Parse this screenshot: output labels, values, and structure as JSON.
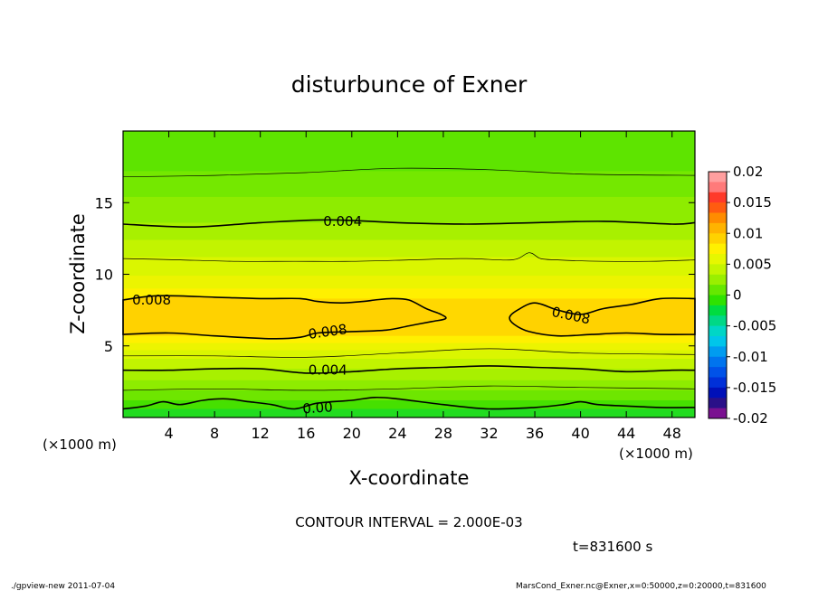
{
  "chart_data": {
    "type": "contour",
    "title": "disturbunce of Exner",
    "xlabel": "X-coordinate",
    "ylabel": "Z-coordinate",
    "x_unit": "(×1000 m)",
    "x_unit_bottom": "(×1000 m)",
    "xlim": [
      0,
      50
    ],
    "ylim": [
      0,
      20
    ],
    "x_ticks": [
      4,
      8,
      12,
      16,
      20,
      24,
      28,
      32,
      36,
      40,
      44,
      48
    ],
    "y_ticks": [
      5,
      10,
      15
    ],
    "colorbar": {
      "range": [
        -0.02,
        0.02
      ],
      "tick_labels": [
        "0.02",
        "0.015",
        "0.01",
        "0.005",
        "0",
        "-0.005",
        "-0.01",
        "-0.015",
        "-0.02"
      ],
      "levels_top_to_bottom": [
        "#ff9f9f",
        "#ff7a7a",
        "#ff3a2a",
        "#ff5c10",
        "#ff8c00",
        "#ffb300",
        "#ffd200",
        "#fff000",
        "#e6f700",
        "#c4f500",
        "#9aef00",
        "#66e800",
        "#2fe200",
        "#00dc40",
        "#00d886",
        "#00d6c6",
        "#00c6ea",
        "#009cf0",
        "#0074ee",
        "#0052e8",
        "#0030d8",
        "#0010b8",
        "#2a1088",
        "#7a1090"
      ]
    },
    "bands": [
      {
        "z_top": 20.0,
        "color": "#5ee400"
      },
      {
        "z_top": 17.2,
        "color": "#74e800"
      },
      {
        "z_top": 15.4,
        "color": "#8eec00"
      },
      {
        "z_top": 13.6,
        "color": "#a8f000"
      },
      {
        "z_top": 12.4,
        "color": "#c2f400"
      },
      {
        "z_top": 11.2,
        "color": "#daf600"
      },
      {
        "z_top": 9.9,
        "color": "#ecf400"
      },
      {
        "z_top": 9.0,
        "color": "#fff000"
      },
      {
        "z_top": 8.3,
        "color": "#ffd800"
      },
      {
        "z_top": 5.7,
        "color": "#fff000"
      },
      {
        "z_top": 5.2,
        "color": "#ecf400"
      },
      {
        "z_top": 4.7,
        "color": "#daf600"
      },
      {
        "z_top": 4.1,
        "color": "#c2f400"
      },
      {
        "z_top": 3.4,
        "color": "#a8f000"
      },
      {
        "z_top": 2.6,
        "color": "#8eec00"
      },
      {
        "z_top": 1.9,
        "color": "#6ee600"
      },
      {
        "z_top": 1.2,
        "color": "#46e000"
      },
      {
        "z_top": 0.6,
        "color": "#22dc20"
      }
    ],
    "warm_lobes": [
      {
        "x": [
          0,
          3,
          8,
          12,
          15.5,
          17,
          19,
          21,
          22,
          23.5,
          25,
          26.5,
          27.8,
          28.2,
          27,
          25,
          23,
          20,
          17,
          15.5,
          13,
          8,
          4,
          0
        ],
        "z": [
          8.2,
          8.5,
          8.4,
          8.3,
          8.3,
          8.1,
          8.0,
          8.1,
          8.2,
          8.3,
          8.2,
          7.6,
          7.2,
          6.9,
          6.7,
          6.4,
          6.1,
          6.0,
          5.9,
          5.6,
          5.5,
          5.7,
          5.9,
          5.8
        ]
      },
      {
        "x": [
          50,
          47,
          44.5,
          42,
          40,
          38,
          36,
          34.5,
          33.8,
          34.2,
          35.5,
          38,
          41,
          44,
          47,
          50
        ],
        "z": [
          8.3,
          8.3,
          7.9,
          7.6,
          7.2,
          7.5,
          8.0,
          7.5,
          7.0,
          6.5,
          6.0,
          5.7,
          5.8,
          5.9,
          5.8,
          5.8
        ]
      }
    ],
    "contours": [
      {
        "level": "0.004",
        "width": 1.6,
        "x": [
          0,
          6,
          12,
          18,
          24,
          30,
          36,
          42,
          48,
          50
        ],
        "z": [
          13.5,
          13.3,
          13.6,
          13.8,
          13.6,
          13.5,
          13.6,
          13.7,
          13.5,
          13.6
        ]
      },
      {
        "level": "0.004",
        "width": 1.6,
        "x": [
          0,
          4,
          8,
          12,
          16,
          20,
          24,
          28,
          32,
          36,
          40,
          44,
          48,
          50
        ],
        "z": [
          3.3,
          3.3,
          3.4,
          3.4,
          3.1,
          3.2,
          3.4,
          3.5,
          3.6,
          3.5,
          3.4,
          3.2,
          3.3,
          3.3
        ]
      },
      {
        "level": "0.00",
        "width": 1.6,
        "x": [
          0,
          2,
          3.5,
          5,
          7,
          9,
          11,
          13,
          15,
          17,
          20,
          22,
          24,
          28,
          32,
          36,
          38.5,
          40,
          41.5,
          44,
          47,
          50
        ],
        "z": [
          0.6,
          0.8,
          1.1,
          0.9,
          1.2,
          1.3,
          1.1,
          0.9,
          0.6,
          1.0,
          1.2,
          1.4,
          1.3,
          0.9,
          0.6,
          0.7,
          0.9,
          1.1,
          0.9,
          0.8,
          0.7,
          0.7
        ]
      },
      {
        "level": "",
        "width": 0.7,
        "x": [
          0,
          8,
          16,
          24,
          32,
          40,
          50
        ],
        "z": [
          16.8,
          16.9,
          17.1,
          17.4,
          17.3,
          17.0,
          16.9
        ]
      },
      {
        "level": "",
        "width": 0.7,
        "x": [
          0,
          5,
          10,
          15,
          20,
          25,
          30,
          34,
          35.5,
          36.5,
          38,
          42,
          46,
          50
        ],
        "z": [
          11.1,
          11.0,
          10.9,
          10.9,
          10.9,
          11.0,
          11.1,
          11.0,
          11.5,
          11.1,
          11.0,
          10.9,
          10.9,
          11.0
        ]
      },
      {
        "level": "",
        "width": 0.7,
        "x": [
          0,
          8,
          16,
          24,
          32,
          40,
          50
        ],
        "z": [
          4.3,
          4.3,
          4.2,
          4.5,
          4.8,
          4.5,
          4.4
        ]
      },
      {
        "level": "",
        "width": 0.7,
        "x": [
          0,
          8,
          16,
          24,
          32,
          40,
          50
        ],
        "z": [
          1.9,
          2.0,
          1.9,
          2.0,
          2.2,
          2.1,
          2.0
        ]
      }
    ],
    "contour_labels": [
      {
        "text": "0.004",
        "x": 17.5,
        "z": 13.7,
        "angle": 0
      },
      {
        "text": "0.008",
        "x": 0.8,
        "z": 8.2,
        "angle": 0
      },
      {
        "text": "0.008",
        "x": 16.2,
        "z": 5.8,
        "angle": -8
      },
      {
        "text": "0.008",
        "x": 37.5,
        "z": 7.4,
        "angle": 12
      },
      {
        "text": "0.004",
        "x": 16.2,
        "z": 3.3,
        "angle": 0
      },
      {
        "text": "0.00",
        "x": 15.7,
        "z": 0.6,
        "angle": -4
      }
    ]
  },
  "annotations": {
    "contour_interval": "CONTOUR INTERVAL = 2.000E-03",
    "time": "t=831600 s",
    "footer_left": "./gpview-new  2011-07-04",
    "footer_right": "MarsCond_Exner.nc@Exner,x=0:50000,z=0:20000,t=831600"
  }
}
